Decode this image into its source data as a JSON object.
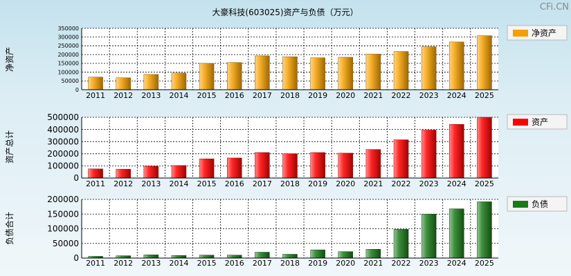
{
  "chart_data": [
    {
      "type": "bar",
      "title": "大豪科技(603025)资产与负债（万元）",
      "ylabel": "净资产",
      "legend": "净资产",
      "legend_position": "right",
      "categories": [
        "2011",
        "2012",
        "2013",
        "2014",
        "2015",
        "2016",
        "2017",
        "2018",
        "2019",
        "2020",
        "2021",
        "2022",
        "2023",
        "2024",
        "2025"
      ],
      "values": [
        72000,
        68000,
        87000,
        95000,
        150000,
        155000,
        193000,
        188000,
        182000,
        185000,
        203000,
        218000,
        245000,
        272000,
        308000
      ],
      "ylim": [
        0,
        350000
      ],
      "yticks": [
        "0",
        "50000",
        "100000",
        "150000",
        "200000",
        "250000",
        "300000",
        "350000"
      ],
      "color": "#f5a000",
      "grid": true
    },
    {
      "type": "bar",
      "ylabel": "资产总计",
      "legend": "资产",
      "legend_position": "right",
      "categories": [
        "2011",
        "2012",
        "2013",
        "2014",
        "2015",
        "2016",
        "2017",
        "2018",
        "2019",
        "2020",
        "2021",
        "2022",
        "2023",
        "2024",
        "2025"
      ],
      "values": [
        75000,
        73000,
        98000,
        103000,
        158000,
        165000,
        210000,
        200000,
        210000,
        205000,
        235000,
        315000,
        395000,
        442000,
        500000
      ],
      "ylim": [
        0,
        500000
      ],
      "yticks": [
        "0",
        "100000",
        "200000",
        "300000",
        "400000",
        "500000"
      ],
      "color": "#ff0000",
      "grid": true
    },
    {
      "type": "bar",
      "ylabel": "负债合计",
      "legend": "负债",
      "legend_position": "right",
      "categories": [
        "2011",
        "2012",
        "2013",
        "2014",
        "2015",
        "2016",
        "2017",
        "2018",
        "2019",
        "2020",
        "2021",
        "2022",
        "2023",
        "2024",
        "2025"
      ],
      "values": [
        6000,
        8000,
        11000,
        9000,
        10000,
        10000,
        20000,
        13000,
        28000,
        22000,
        30000,
        98000,
        150000,
        168000,
        192000
      ],
      "ylim": [
        0,
        200000
      ],
      "yticks": [
        "0",
        "50000",
        "100000",
        "150000",
        "200000"
      ],
      "color": "#1a7a1a",
      "grid": true
    }
  ],
  "watermark": "CFi.CN"
}
